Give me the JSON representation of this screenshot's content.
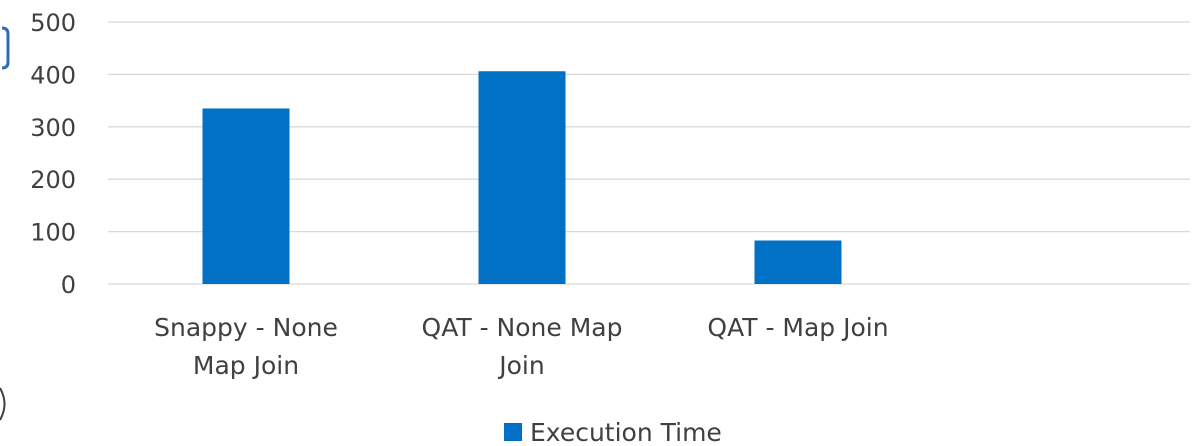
{
  "chart_data": {
    "type": "bar",
    "categories": [
      [
        "Snappy - None",
        "Map Join"
      ],
      [
        "QAT - None Map",
        "Join"
      ],
      [
        "QAT - Map Join"
      ]
    ],
    "series": [
      {
        "name": "Execution Time",
        "values": [
          335,
          406,
          83
        ],
        "color": "#0071C5"
      }
    ],
    "yticks": [
      "0",
      "100",
      "200",
      "300",
      "400",
      "500"
    ],
    "ylim": [
      0,
      500
    ],
    "grid": true,
    "legend_position": "bottom-center",
    "gridline_color": "#D9D9D9"
  }
}
